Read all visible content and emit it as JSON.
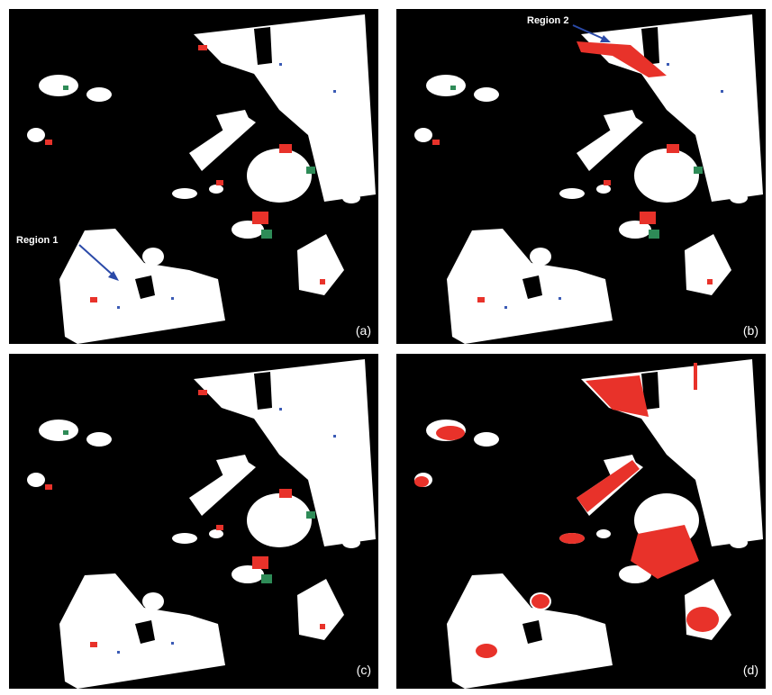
{
  "panels": [
    {
      "label": "(a)",
      "annotation": "Region 1"
    },
    {
      "label": "(b)",
      "annotation": "Region 2"
    },
    {
      "label": "(c)"
    },
    {
      "label": "(d)"
    }
  ]
}
